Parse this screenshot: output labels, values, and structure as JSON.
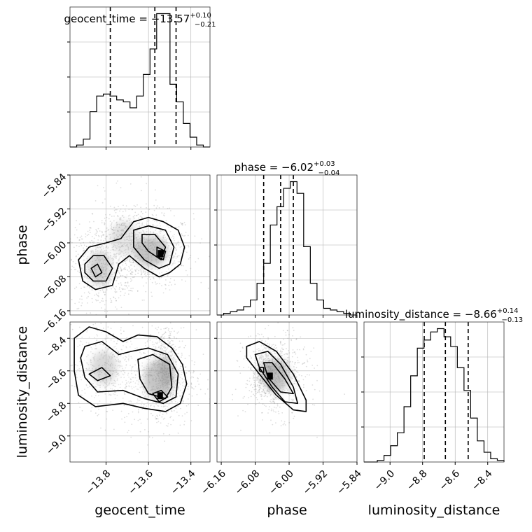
{
  "chart_data": {
    "type": "corner",
    "parameters": [
      {
        "name": "geocent_time",
        "axis_range": [
          -13.97,
          -13.31
        ],
        "ticks": [
          "-13.8",
          "-13.6",
          "-13.4"
        ],
        "title": "geocent_time = −13.57",
        "title_plus": "+0.10",
        "title_minus": "−0.21",
        "quantiles": [
          -13.78,
          -13.57,
          -13.47
        ],
        "hist_counts": [
          0,
          1,
          4,
          18,
          26,
          27,
          26,
          24,
          23,
          20,
          26,
          37,
          50,
          68,
          68,
          32,
          23,
          12,
          5,
          1,
          0
        ]
      },
      {
        "name": "phase",
        "axis_range": [
          -6.17,
          -5.84
        ],
        "ticks": [
          "-6.16",
          "-6.08",
          "-6.00",
          "-5.92",
          "-5.84"
        ],
        "title": "phase = −6.02",
        "title_plus": "+0.03",
        "title_minus": "−0.04",
        "quantiles": [
          -6.06,
          -6.02,
          -5.99
        ],
        "hist_counts": [
          0,
          1,
          2,
          3,
          5,
          9,
          19,
          31,
          54,
          65,
          76,
          80,
          73,
          41,
          19,
          9,
          4,
          3,
          2,
          1,
          0
        ]
      },
      {
        "name": "luminosity_distance",
        "axis_range": [
          -9.16,
          -8.3
        ],
        "ticks": [
          "-9.0",
          "-8.8",
          "-8.6",
          "-8.4"
        ],
        "title": "luminosity_distance = −8.66",
        "title_plus": "+0.14",
        "title_minus": "−0.13",
        "quantiles": [
          -8.79,
          -8.66,
          -8.52
        ],
        "hist_counts": [
          0,
          0,
          1,
          4,
          10,
          18,
          34,
          53,
          70,
          75,
          80,
          82,
          77,
          71,
          58,
          44,
          27,
          13,
          6,
          2,
          1
        ]
      }
    ],
    "y_ticks": {
      "phase": [
        "-5.84",
        "-5.92",
        "-6.00",
        "-6.08",
        "-6.16"
      ],
      "luminosity_distance": [
        "-8.4",
        "-8.6",
        "-8.8",
        "-9.0"
      ]
    },
    "scatter_panels": [
      {
        "x": "geocent_time",
        "y": "phase",
        "blobs": [
          [
            -13.59,
            -6.02,
            0.08,
            0.035,
            0.45
          ],
          [
            -13.83,
            -6.06,
            0.055,
            0.04,
            0.35
          ],
          [
            -13.71,
            -5.99,
            0.07,
            0.04,
            0.2
          ]
        ],
        "contours": [
          [
            [
              -13.93,
              -6.04
            ],
            [
              -13.88,
              -6.01
            ],
            [
              -13.8,
              -6.0
            ],
            [
              -13.73,
              -5.99
            ],
            [
              -13.67,
              -5.95
            ],
            [
              -13.6,
              -5.94
            ],
            [
              -13.53,
              -5.95
            ],
            [
              -13.46,
              -5.97
            ],
            [
              -13.43,
              -6.01
            ],
            [
              -13.45,
              -6.05
            ],
            [
              -13.5,
              -6.07
            ],
            [
              -13.55,
              -6.08
            ],
            [
              -13.62,
              -6.06
            ],
            [
              -13.69,
              -6.03
            ],
            [
              -13.74,
              -6.05
            ],
            [
              -13.77,
              -6.1
            ],
            [
              -13.85,
              -6.11
            ],
            [
              -13.91,
              -6.09
            ]
          ],
          [
            [
              -13.9,
              -6.05
            ],
            [
              -13.86,
              -6.03
            ],
            [
              -13.81,
              -6.03
            ],
            [
              -13.77,
              -6.06
            ],
            [
              -13.8,
              -6.09
            ],
            [
              -13.86,
              -6.09
            ],
            [
              -13.9,
              -6.07
            ]
          ],
          [
            [
              -13.67,
              -5.97
            ],
            [
              -13.6,
              -5.96
            ],
            [
              -13.52,
              -5.97
            ],
            [
              -13.48,
              -6.01
            ],
            [
              -13.5,
              -6.05
            ],
            [
              -13.55,
              -6.06
            ],
            [
              -13.62,
              -6.04
            ],
            [
              -13.67,
              -6.01
            ]
          ],
          [
            [
              -13.87,
              -6.06
            ],
            [
              -13.84,
              -6.05
            ],
            [
              -13.82,
              -6.07
            ],
            [
              -13.85,
              -6.08
            ]
          ],
          [
            [
              -13.63,
              -5.98
            ],
            [
              -13.57,
              -5.98
            ],
            [
              -13.52,
              -6.01
            ],
            [
              -13.54,
              -6.04
            ],
            [
              -13.6,
              -6.02
            ],
            [
              -13.63,
              -6.0
            ]
          ],
          [
            [
              -13.56,
              -6.01
            ],
            [
              -13.52,
              -6.02
            ],
            [
              -13.53,
              -6.04
            ],
            [
              -13.56,
              -6.03
            ]
          ]
        ]
      },
      {
        "x": "geocent_time",
        "y": "luminosity_distance",
        "blobs": [
          [
            -13.55,
            -8.65,
            0.07,
            0.12,
            0.45
          ],
          [
            -13.81,
            -8.58,
            0.06,
            0.1,
            0.3
          ],
          [
            -13.52,
            -8.6,
            0.025,
            0.1,
            0.35
          ]
        ],
        "contours": [
          [
            [
              -13.95,
              -8.4
            ],
            [
              -13.88,
              -8.33
            ],
            [
              -13.8,
              -8.36
            ],
            [
              -13.72,
              -8.42
            ],
            [
              -13.65,
              -8.38
            ],
            [
              -13.56,
              -8.39
            ],
            [
              -13.49,
              -8.46
            ],
            [
              -13.44,
              -8.56
            ],
            [
              -13.42,
              -8.68
            ],
            [
              -13.45,
              -8.8
            ],
            [
              -13.52,
              -8.85
            ],
            [
              -13.62,
              -8.83
            ],
            [
              -13.72,
              -8.8
            ],
            [
              -13.85,
              -8.82
            ],
            [
              -13.93,
              -8.75
            ],
            [
              -13.95,
              -8.6
            ]
          ],
          [
            [
              -13.9,
              -8.45
            ],
            [
              -13.82,
              -8.42
            ],
            [
              -13.74,
              -8.5
            ],
            [
              -13.68,
              -8.48
            ],
            [
              -13.6,
              -8.46
            ],
            [
              -13.51,
              -8.5
            ],
            [
              -13.46,
              -8.62
            ],
            [
              -13.47,
              -8.76
            ],
            [
              -13.53,
              -8.8
            ],
            [
              -13.62,
              -8.77
            ],
            [
              -13.72,
              -8.72
            ],
            [
              -13.84,
              -8.73
            ],
            [
              -13.9,
              -8.64
            ],
            [
              -13.92,
              -8.52
            ]
          ],
          [
            [
              -13.65,
              -8.53
            ],
            [
              -13.58,
              -8.5
            ],
            [
              -13.5,
              -8.56
            ],
            [
              -13.49,
              -8.7
            ],
            [
              -13.52,
              -8.77
            ],
            [
              -13.6,
              -8.74
            ],
            [
              -13.64,
              -8.65
            ]
          ],
          [
            [
              -13.88,
              -8.62
            ],
            [
              -13.82,
              -8.58
            ],
            [
              -13.78,
              -8.63
            ],
            [
              -13.84,
              -8.66
            ]
          ],
          [
            [
              -13.58,
              -8.74
            ],
            [
              -13.54,
              -8.72
            ],
            [
              -13.51,
              -8.76
            ],
            [
              -13.55,
              -8.79
            ]
          ]
        ]
      },
      {
        "x": "phase",
        "y": "luminosity_distance",
        "blobs": [
          [
            -6.03,
            -8.63,
            0.03,
            0.1,
            0.45
          ],
          [
            -6.05,
            -8.6,
            0.015,
            0.06,
            0.3
          ]
        ],
        "contours": [
          [
            [
              -6.1,
              -8.45
            ],
            [
              -6.07,
              -8.42
            ],
            [
              -6.03,
              -8.48
            ],
            [
              -5.99,
              -8.62
            ],
            [
              -5.96,
              -8.78
            ],
            [
              -5.96,
              -8.85
            ],
            [
              -5.99,
              -8.84
            ],
            [
              -6.03,
              -8.75
            ],
            [
              -6.07,
              -8.62
            ],
            [
              -6.1,
              -8.52
            ]
          ],
          [
            [
              -6.08,
              -8.5
            ],
            [
              -6.05,
              -8.48
            ],
            [
              -6.02,
              -8.56
            ],
            [
              -5.99,
              -8.7
            ],
            [
              -5.98,
              -8.8
            ],
            [
              -6.01,
              -8.79
            ],
            [
              -6.04,
              -8.7
            ],
            [
              -6.07,
              -8.58
            ]
          ],
          [
            [
              -6.06,
              -8.55
            ],
            [
              -6.04,
              -8.55
            ],
            [
              -6.01,
              -8.65
            ],
            [
              -5.99,
              -8.74
            ],
            [
              -6.02,
              -8.73
            ],
            [
              -6.05,
              -8.64
            ]
          ],
          [
            [
              -6.07,
              -8.58
            ],
            [
              -6.06,
              -8.58
            ],
            [
              -6.06,
              -8.61
            ],
            [
              -6.07,
              -8.6
            ]
          ],
          [
            [
              -6.05,
              -8.62
            ],
            [
              -6.04,
              -8.62
            ],
            [
              -6.04,
              -8.65
            ],
            [
              -6.05,
              -8.64
            ]
          ]
        ]
      }
    ],
    "grid": true,
    "legend": "none"
  }
}
